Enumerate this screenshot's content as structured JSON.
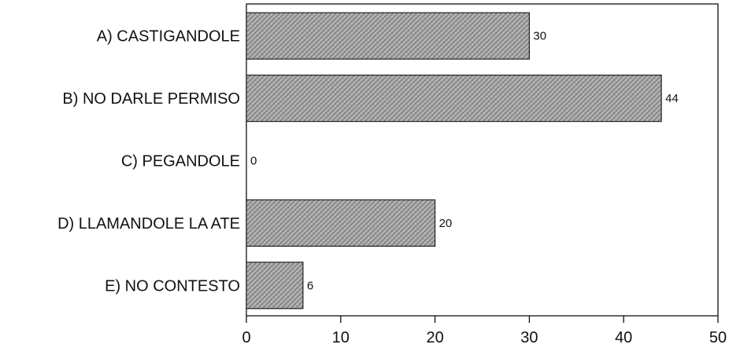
{
  "chart_data": {
    "type": "bar",
    "orientation": "horizontal",
    "categories": [
      "A) CASTIGANDOLE",
      "B) NO DARLE PERMISO",
      "C) PEGANDOLE",
      "D) LLAMANDOLE LA ATE",
      "E) NO CONTESTO"
    ],
    "values": [
      30,
      44,
      0,
      20,
      6
    ],
    "data_labels": [
      "30",
      "44",
      "0",
      "20",
      "6"
    ],
    "xlim": [
      0,
      50
    ],
    "x_ticks": [
      0,
      10,
      20,
      30,
      40,
      50
    ],
    "x_tick_labels": [
      "0",
      "10",
      "20",
      "30",
      "40",
      "50"
    ],
    "grid": false,
    "legend": "none",
    "bar_color": "#a9a9a9"
  }
}
